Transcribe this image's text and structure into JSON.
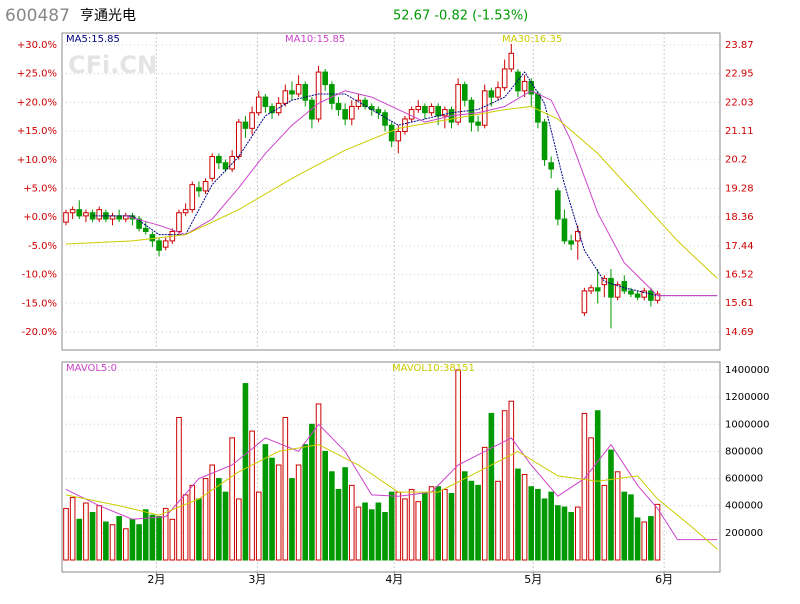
{
  "header": {
    "code": "600487",
    "name": "亨通光电",
    "quote": "52.67 -0.82 (-1.53%)",
    "watermark": "CFi.CN"
  },
  "chart_data": [
    {
      "type": "candlestick",
      "xlim": [
        -0.6,
        98.4
      ],
      "xticks": [
        {
          "value": 13.6,
          "label": "2月"
        },
        {
          "value": 28.8,
          "label": "3月"
        },
        {
          "value": 49.4,
          "label": "4月"
        },
        {
          "value": 70.3,
          "label": "5月"
        },
        {
          "value": 90,
          "label": "6月"
        }
      ],
      "ylim": [
        14.11,
        24.25
      ],
      "yticks": [
        14.69,
        15.61,
        16.52,
        17.44,
        18.36,
        19.28,
        20.2,
        21.11,
        22.03,
        22.95,
        23.87
      ],
      "y2lim": [
        -23.14,
        32.09
      ],
      "y2ticks": [
        {
          "value": -20,
          "label": "-20.0%"
        },
        {
          "value": -15,
          "label": "-15.0%"
        },
        {
          "value": -10,
          "label": "-10.0%"
        },
        {
          "value": -5,
          "label": "-5.0%"
        },
        {
          "value": 0,
          "label": "+0.0%"
        },
        {
          "value": 5,
          "label": "+5.0%"
        },
        {
          "value": 10,
          "label": "+10.0%"
        },
        {
          "value": 15,
          "label": "+15.0%"
        },
        {
          "value": 20,
          "label": "+20.0%"
        },
        {
          "value": 25,
          "label": "+25.0%"
        },
        {
          "value": 30,
          "label": "+30.0%"
        }
      ],
      "grid": true,
      "up_color": "#cc0000",
      "down_color": "#009900",
      "open": [
        18.2,
        18.5,
        18.6,
        18.4,
        18.5,
        18.3,
        18.5,
        18.3,
        18.4,
        18.3,
        18.4,
        18.3,
        18.0,
        17.8,
        17.6,
        17.4,
        17.6,
        17.9,
        18.5,
        18.6,
        19.3,
        19.2,
        19.6,
        20.3,
        20.1,
        19.9,
        20.3,
        21.4,
        21.2,
        21.7,
        22.2,
        21.9,
        21.7,
        22.0,
        22.4,
        22.3,
        22.6,
        22.1,
        21.5,
        23.0,
        22.6,
        22.0,
        21.8,
        21.5,
        21.9,
        22.1,
        21.9,
        21.8,
        21.7,
        21.3,
        20.8,
        21.1,
        21.5,
        21.8,
        21.9,
        21.7,
        21.9,
        21.6,
        21.8,
        21.4,
        22.6,
        22.1,
        21.4,
        21.3,
        22.4,
        22.2,
        22.5,
        23.1,
        23.0,
        22.4,
        22.7,
        22.3,
        21.4,
        20.1,
        19.2,
        18.3,
        17.6,
        17.6,
        15.3,
        16.0,
        16.1,
        16.2,
        16.4,
        15.8,
        16.3,
        16.0,
        15.9,
        15.8,
        16.0,
        15.7
      ],
      "high": [
        18.6,
        18.7,
        18.9,
        18.6,
        18.6,
        18.7,
        18.6,
        18.5,
        18.6,
        18.5,
        18.5,
        18.4,
        18.2,
        17.9,
        17.7,
        17.7,
        18.0,
        18.6,
        18.8,
        19.5,
        19.5,
        19.6,
        20.4,
        20.4,
        20.2,
        20.5,
        21.5,
        21.6,
        21.9,
        22.4,
        22.3,
        22.0,
        22.2,
        22.6,
        22.7,
        22.9,
        22.7,
        22.2,
        23.2,
        23.1,
        22.7,
        22.2,
        22.0,
        22.1,
        22.3,
        22.2,
        22.0,
        21.9,
        21.8,
        21.4,
        21.3,
        21.6,
        21.9,
        22.1,
        22.0,
        22.0,
        22.0,
        21.9,
        21.9,
        22.8,
        22.7,
        22.2,
        21.6,
        22.6,
        22.5,
        22.7,
        23.4,
        23.9,
        23.1,
        22.9,
        22.8,
        22.4,
        21.5,
        20.3,
        19.3,
        18.6,
        17.8,
        18.1,
        16.1,
        16.2,
        16.7,
        16.5,
        16.7,
        16.3,
        16.5,
        16.1,
        16.0,
        16.1,
        16.1,
        16.0
      ],
      "low": [
        18.1,
        18.3,
        18.3,
        18.2,
        18.2,
        18.2,
        18.2,
        18.1,
        18.2,
        18.2,
        18.1,
        17.9,
        17.8,
        17.4,
        17.1,
        17.3,
        17.5,
        17.8,
        18.4,
        18.5,
        19.0,
        19.1,
        19.5,
        19.9,
        19.8,
        19.8,
        20.2,
        20.9,
        21.0,
        21.6,
        21.7,
        21.5,
        21.6,
        21.9,
        22.1,
        22.2,
        21.9,
        21.2,
        21.4,
        22.4,
        21.8,
        21.6,
        21.3,
        21.3,
        21.8,
        21.8,
        21.6,
        21.5,
        21.1,
        20.6,
        20.4,
        21.0,
        21.4,
        21.7,
        21.5,
        21.6,
        21.3,
        21.2,
        21.2,
        21.3,
        21.9,
        21.1,
        21.1,
        21.2,
        21.9,
        22.1,
        22.4,
        23.0,
        22.2,
        22.2,
        21.9,
        21.2,
        20.0,
        19.6,
        18.1,
        17.5,
        17.3,
        17.0,
        15.2,
        15.9,
        15.6,
        15.8,
        14.8,
        15.7,
        15.9,
        15.8,
        15.7,
        15.7,
        15.5,
        15.6
      ],
      "close": [
        18.5,
        18.6,
        18.4,
        18.5,
        18.3,
        18.6,
        18.3,
        18.4,
        18.3,
        18.4,
        18.3,
        18.0,
        17.9,
        17.6,
        17.3,
        17.6,
        17.9,
        18.5,
        18.6,
        19.4,
        19.2,
        19.5,
        20.3,
        20.1,
        19.9,
        20.3,
        21.4,
        21.2,
        21.7,
        22.2,
        21.9,
        21.7,
        22.0,
        22.4,
        22.3,
        22.6,
        22.1,
        21.5,
        23.0,
        22.6,
        22.0,
        21.8,
        21.5,
        21.9,
        22.1,
        21.9,
        21.8,
        21.7,
        21.3,
        20.8,
        21.1,
        21.5,
        21.8,
        21.9,
        21.7,
        21.9,
        21.6,
        21.8,
        21.4,
        22.6,
        22.1,
        21.4,
        21.3,
        22.4,
        22.2,
        22.5,
        23.1,
        23.6,
        22.4,
        22.7,
        22.3,
        21.4,
        20.2,
        19.9,
        18.3,
        17.6,
        17.5,
        17.9,
        16.0,
        16.1,
        16.0,
        16.4,
        15.8,
        16.2,
        16.0,
        15.9,
        15.8,
        16.0,
        15.7,
        15.9
      ],
      "series": [
        {
          "name": "MA5:15.85",
          "color": "#000080",
          "x": [
            4,
            10,
            14,
            18,
            22,
            26,
            30,
            34,
            38,
            42,
            46,
            50,
            54,
            58,
            62,
            66,
            69,
            72,
            75,
            78,
            81,
            84,
            89,
            98
          ],
          "values": [
            18.4,
            18.4,
            17.8,
            17.8,
            19.4,
            20.3,
            21.6,
            22.1,
            22.3,
            22.3,
            21.8,
            21.3,
            21.5,
            21.7,
            21.8,
            22.2,
            23.0,
            22.0,
            19.4,
            17.3,
            16.3,
            16.1,
            15.85,
            15.85
          ]
        },
        {
          "name": "MA10:15.85",
          "color": "#cc44cc",
          "x": [
            9,
            14,
            18,
            22,
            26,
            30,
            34,
            38,
            42,
            46,
            50,
            54,
            58,
            62,
            66,
            70,
            73,
            76,
            80,
            84,
            89,
            98
          ],
          "values": [
            18.4,
            18.1,
            17.8,
            18.3,
            19.3,
            20.4,
            21.3,
            22.0,
            22.4,
            22.2,
            21.8,
            21.4,
            21.6,
            21.7,
            21.9,
            22.4,
            22.1,
            20.8,
            18.5,
            16.9,
            15.85,
            15.85
          ]
        },
        {
          "name": "MA30:16.35",
          "color": "#cccc00",
          "x": [
            0,
            10,
            18,
            26,
            34,
            42,
            50,
            58,
            66,
            70,
            74,
            80,
            86,
            92,
            98
          ],
          "values": [
            17.5,
            17.6,
            17.8,
            18.6,
            19.6,
            20.5,
            21.2,
            21.5,
            21.8,
            21.9,
            21.5,
            20.4,
            19.0,
            17.6,
            16.4
          ]
        }
      ]
    },
    {
      "type": "volume",
      "xlim": [
        -0.6,
        98.4
      ],
      "xticks": [
        {
          "value": 13.6,
          "label": "2月"
        },
        {
          "value": 28.8,
          "label": "3月"
        },
        {
          "value": 49.4,
          "label": "4月"
        },
        {
          "value": 70.3,
          "label": "5月"
        },
        {
          "value": 90,
          "label": "6月"
        }
      ],
      "ylim": [
        -88400,
        1459000
      ],
      "yticks": [
        200000,
        400000,
        600000,
        800000,
        1000000,
        1200000,
        1400000
      ],
      "grid": true,
      "values": [
        380000,
        460000,
        300000,
        420000,
        350000,
        400000,
        280000,
        260000,
        320000,
        230000,
        300000,
        260000,
        370000,
        330000,
        320000,
        380000,
        300000,
        1050000,
        480000,
        550000,
        450000,
        600000,
        700000,
        600000,
        500000,
        900000,
        450000,
        1300000,
        950000,
        500000,
        850000,
        750000,
        700000,
        1050000,
        600000,
        700000,
        850000,
        1000000,
        1150000,
        800000,
        650000,
        520000,
        680000,
        550000,
        390000,
        420000,
        370000,
        420000,
        350000,
        500000,
        500000,
        450000,
        520000,
        430000,
        490000,
        540000,
        540000,
        520000,
        490000,
        1400000,
        650000,
        580000,
        550000,
        830000,
        1080000,
        580000,
        1100000,
        1170000,
        670000,
        630000,
        540000,
        520000,
        450000,
        500000,
        400000,
        390000,
        350000,
        390000,
        1080000,
        900000,
        1100000,
        550000,
        810000,
        650000,
        500000,
        480000,
        310000,
        280000,
        320000,
        410000
      ],
      "series": [
        {
          "name": "MAVOL5:0",
          "color": "#cc44cc",
          "x": [
            0,
            5,
            10,
            15,
            20,
            25,
            30,
            35,
            38,
            42,
            46,
            50,
            55,
            59,
            63,
            67,
            70,
            74,
            78,
            82,
            86,
            89,
            92,
            98
          ],
          "values": [
            520000,
            400000,
            300000,
            320000,
            600000,
            700000,
            900000,
            800000,
            1000000,
            800000,
            480000,
            470000,
            500000,
            700000,
            800000,
            900000,
            700000,
            470000,
            600000,
            850000,
            550000,
            380000,
            150000,
            150000
          ]
        },
        {
          "name": "MAVOL10:38151",
          "color": "#cccc00",
          "x": [
            0,
            8,
            14,
            20,
            26,
            32,
            38,
            44,
            50,
            56,
            62,
            68,
            74,
            80,
            86,
            89,
            94,
            98
          ],
          "values": [
            480000,
            400000,
            330000,
            450000,
            650000,
            800000,
            850000,
            700000,
            500000,
            500000,
            650000,
            800000,
            620000,
            580000,
            620000,
            450000,
            250000,
            80000
          ]
        }
      ]
    }
  ]
}
